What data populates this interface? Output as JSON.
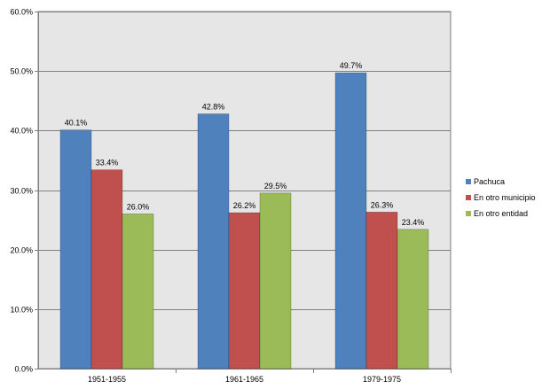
{
  "chart_data": {
    "type": "bar",
    "title": "",
    "xlabel": "",
    "ylabel": "",
    "categories": [
      "1951-1955",
      "1961-1965",
      "1979-1975"
    ],
    "series": [
      {
        "name": "Pachuca",
        "values": [
          40.1,
          42.8,
          49.7
        ],
        "color": "#4f81bd"
      },
      {
        "name": "En otro municipio",
        "values": [
          33.4,
          26.2,
          26.3
        ],
        "color": "#c0504d"
      },
      {
        "name": "En otro entidad",
        "values": [
          26.0,
          29.5,
          23.4
        ],
        "color": "#9bbb59"
      }
    ],
    "ylim": [
      0,
      60
    ],
    "yticks": [
      0,
      10,
      20,
      30,
      40,
      50,
      60
    ],
    "ytick_format": "percent_one_decimal",
    "data_labels": true,
    "grid": true,
    "plot_background": "#e6e6e6",
    "legend_position": "right"
  }
}
